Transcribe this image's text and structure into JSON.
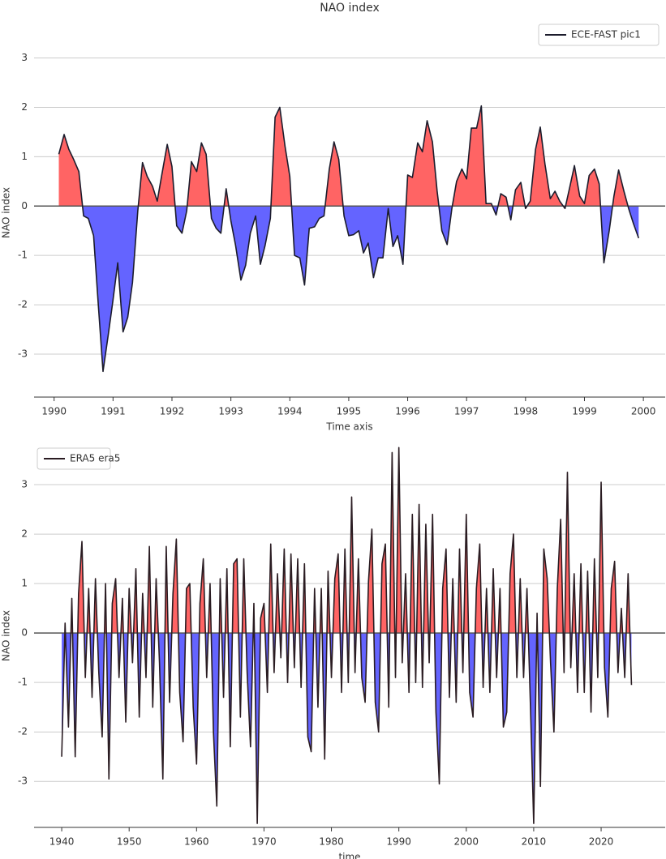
{
  "chart_data": [
    {
      "type": "area",
      "title": "NAO index",
      "x_label": "Time axis",
      "y_label": "NAO index",
      "x": [
        1990.08,
        1990.17,
        1990.25,
        1990.33,
        1990.42,
        1990.5,
        1990.58,
        1990.67,
        1990.75,
        1990.83,
        1990.92,
        1991.0,
        1991.08,
        1991.17,
        1991.25,
        1991.33,
        1991.42,
        1991.5,
        1991.58,
        1991.67,
        1991.75,
        1991.83,
        1991.92,
        1992.0,
        1992.08,
        1992.17,
        1992.25,
        1992.33,
        1992.42,
        1992.5,
        1992.58,
        1992.67,
        1992.75,
        1992.83,
        1992.92,
        1993.0,
        1993.08,
        1993.17,
        1993.25,
        1993.33,
        1993.42,
        1993.5,
        1993.58,
        1993.67,
        1993.75,
        1993.83,
        1993.92,
        1994.0,
        1994.08,
        1994.17,
        1994.25,
        1994.33,
        1994.42,
        1994.5,
        1994.58,
        1994.67,
        1994.75,
        1994.83,
        1994.92,
        1995.0,
        1995.08,
        1995.17,
        1995.25,
        1995.33,
        1995.42,
        1995.5,
        1995.58,
        1995.67,
        1995.75,
        1995.83,
        1995.92,
        1996.0,
        1996.08,
        1996.17,
        1996.25,
        1996.33,
        1996.42,
        1996.5,
        1996.58,
        1996.67,
        1996.75,
        1996.83,
        1996.92,
        1997.0,
        1997.08,
        1997.17,
        1997.25,
        1997.33,
        1997.42,
        1997.5,
        1997.58,
        1997.67,
        1997.75,
        1997.83,
        1997.92,
        1998.0,
        1998.08,
        1998.17,
        1998.25,
        1998.33,
        1998.42,
        1998.5,
        1998.58,
        1998.67,
        1998.75,
        1998.83,
        1998.92,
        1999.0,
        1999.08,
        1999.17,
        1999.25,
        1999.33,
        1999.42,
        1999.5,
        1999.58,
        1999.67,
        1999.75,
        1999.83,
        1999.92
      ],
      "series": [
        {
          "name": "ECE-FAST pic1",
          "color": "#1c1c2c",
          "values": [
            1.05,
            1.45,
            1.15,
            0.95,
            0.7,
            -0.2,
            -0.25,
            -0.6,
            -2.0,
            -3.35,
            -2.6,
            -1.9,
            -1.15,
            -2.55,
            -2.25,
            -1.55,
            -0.1,
            0.88,
            0.6,
            0.4,
            0.1,
            0.65,
            1.25,
            0.8,
            -0.4,
            -0.55,
            -0.1,
            0.9,
            0.7,
            1.28,
            1.05,
            -0.25,
            -0.45,
            -0.55,
            0.35,
            -0.3,
            -0.8,
            -1.5,
            -1.2,
            -0.55,
            -0.2,
            -1.18,
            -0.8,
            -0.25,
            1.8,
            2.0,
            1.2,
            0.6,
            -1.0,
            -1.05,
            -1.6,
            -0.45,
            -0.42,
            -0.25,
            -0.2,
            0.75,
            1.3,
            0.95,
            -0.2,
            -0.6,
            -0.58,
            -0.5,
            -0.95,
            -0.75,
            -1.45,
            -1.05,
            -1.05,
            -0.05,
            -0.82,
            -0.6,
            -1.18,
            0.63,
            0.58,
            1.28,
            1.1,
            1.73,
            1.3,
            0.3,
            -0.5,
            -0.78,
            -0.05,
            0.5,
            0.75,
            0.55,
            1.58,
            1.58,
            2.03,
            0.05,
            0.05,
            -0.18,
            0.25,
            0.18,
            -0.28,
            0.33,
            0.48,
            -0.05,
            0.1,
            1.15,
            1.6,
            0.85,
            0.15,
            0.3,
            0.1,
            -0.05,
            0.38,
            0.82,
            0.2,
            0.05,
            0.62,
            0.75,
            0.45,
            -1.15,
            -0.5,
            0.2,
            0.73,
            0.3,
            -0.05,
            -0.35,
            -0.65
          ]
        }
      ],
      "pos_color": "#ff6464",
      "neg_color": "#6464ff",
      "xlim": [
        1989.66,
        2000.37
      ],
      "ylim": [
        -3.87,
        3.6
      ],
      "xticks": [
        1990,
        1991,
        1992,
        1993,
        1994,
        1995,
        1996,
        1997,
        1998,
        1999,
        2000
      ],
      "yticks": [
        -3,
        -2,
        -1,
        0,
        1,
        2,
        3
      ],
      "grid": true,
      "legend": "upper right"
    },
    {
      "type": "area",
      "x_label": "time",
      "y_label": "NAO index",
      "x": [
        1940,
        1940.5,
        1941,
        1941.5,
        1942,
        1942.5,
        1943,
        1943.5,
        1944,
        1944.5,
        1945,
        1945.5,
        1946,
        1946.5,
        1947,
        1947.5,
        1948,
        1948.5,
        1949,
        1949.5,
        1950,
        1950.5,
        1951,
        1951.5,
        1952,
        1952.5,
        1953,
        1953.5,
        1954,
        1954.5,
        1955,
        1955.5,
        1956,
        1956.5,
        1957,
        1957.5,
        1958,
        1958.5,
        1959,
        1959.5,
        1960,
        1960.5,
        1961,
        1961.5,
        1962,
        1962.5,
        1963,
        1963.5,
        1964,
        1964.5,
        1965,
        1965.5,
        1966,
        1966.5,
        1967,
        1967.5,
        1968,
        1968.5,
        1969,
        1969.5,
        1970,
        1970.5,
        1971,
        1971.5,
        1972,
        1972.5,
        1973,
        1973.5,
        1974,
        1974.5,
        1975,
        1975.5,
        1976,
        1976.5,
        1977,
        1977.5,
        1978,
        1978.5,
        1979,
        1979.5,
        1980,
        1980.5,
        1981,
        1981.5,
        1982,
        1982.5,
        1983,
        1983.5,
        1984,
        1984.5,
        1985,
        1985.5,
        1986,
        1986.5,
        1987,
        1987.5,
        1988,
        1988.5,
        1989,
        1989.5,
        1990,
        1990.5,
        1991,
        1991.5,
        1992,
        1992.5,
        1993,
        1993.5,
        1994,
        1994.5,
        1995,
        1995.5,
        1996,
        1996.5,
        1997,
        1997.5,
        1998,
        1998.5,
        1999,
        1999.5,
        2000,
        2000.5,
        2001,
        2001.5,
        2002,
        2002.5,
        2003,
        2003.5,
        2004,
        2004.5,
        2005,
        2005.5,
        2006,
        2006.5,
        2007,
        2007.5,
        2008,
        2008.5,
        2009,
        2009.5,
        2010,
        2010.5,
        2011,
        2011.5,
        2012,
        2012.5,
        2013,
        2013.5,
        2014,
        2014.5,
        2015,
        2015.5,
        2016,
        2016.5,
        2017,
        2017.5,
        2018,
        2018.5,
        2019,
        2019.5,
        2020,
        2020.5,
        2021,
        2021.5,
        2022,
        2022.5,
        2023,
        2023.5,
        2024,
        2024.5
      ],
      "series": [
        {
          "name": "ERA5 era5",
          "color": "#2a1c22",
          "values": [
            -2.5,
            0.2,
            -1.9,
            0.7,
            -2.5,
            0.8,
            1.85,
            -0.9,
            0.9,
            -1.3,
            1.1,
            -0.8,
            -2.1,
            1.0,
            -2.95,
            0.6,
            1.1,
            -0.9,
            0.7,
            -1.8,
            0.9,
            -0.6,
            1.3,
            -1.7,
            0.8,
            -0.9,
            1.75,
            -1.5,
            1.1,
            -0.6,
            -2.95,
            1.75,
            -1.4,
            0.8,
            1.9,
            -1.2,
            -2.2,
            0.9,
            1.0,
            -1.5,
            -2.65,
            0.6,
            1.5,
            -0.9,
            1.0,
            -2.0,
            -3.5,
            1.1,
            -1.3,
            1.3,
            -2.3,
            1.4,
            1.5,
            -1.7,
            1.5,
            -0.8,
            -2.3,
            0.6,
            -3.85,
            0.3,
            0.6,
            -1.2,
            1.8,
            -0.8,
            1.2,
            -0.5,
            1.7,
            -1.0,
            1.6,
            -0.7,
            1.5,
            -1.1,
            1.4,
            -2.1,
            -2.4,
            0.9,
            -1.5,
            0.9,
            -2.55,
            1.25,
            -0.9,
            1.1,
            1.6,
            -1.2,
            1.7,
            -1.0,
            2.75,
            -0.8,
            1.5,
            -0.9,
            -1.4,
            1.05,
            2.1,
            -1.4,
            -2.0,
            1.4,
            1.8,
            -1.5,
            3.65,
            -0.9,
            3.75,
            -0.6,
            1.2,
            -1.2,
            2.4,
            -1.0,
            2.6,
            -1.1,
            2.2,
            -0.6,
            2.4,
            -1.6,
            -3.05,
            0.9,
            1.7,
            -1.3,
            1.1,
            -1.4,
            1.7,
            -0.8,
            2.4,
            -1.2,
            -1.7,
            0.9,
            1.8,
            -1.1,
            0.9,
            -1.2,
            1.3,
            -0.9,
            0.9,
            -1.9,
            -1.6,
            1.2,
            2.0,
            -0.9,
            1.1,
            -0.9,
            0.9,
            -1.4,
            -3.85,
            0.4,
            -3.1,
            1.7,
            1.1,
            -0.6,
            -2.0,
            0.9,
            2.3,
            -0.8,
            3.25,
            -0.7,
            1.2,
            -1.2,
            1.4,
            -1.2,
            1.25,
            -1.6,
            1.5,
            -0.9,
            3.05,
            -0.7,
            -1.7,
            0.9,
            1.45,
            -0.8,
            0.5,
            -0.9,
            1.2,
            -1.05
          ]
        }
      ],
      "pos_color": "#ff6464",
      "neg_color": "#6464ff",
      "xlim": [
        1935.9,
        2029.5
      ],
      "ylim": [
        -3.93,
        3.82
      ],
      "xticks": [
        1940,
        1950,
        1960,
        1970,
        1980,
        1990,
        2000,
        2010,
        2020
      ],
      "yticks": [
        -3,
        -2,
        -1,
        0,
        1,
        2,
        3
      ],
      "grid": true,
      "legend": "upper left"
    }
  ]
}
